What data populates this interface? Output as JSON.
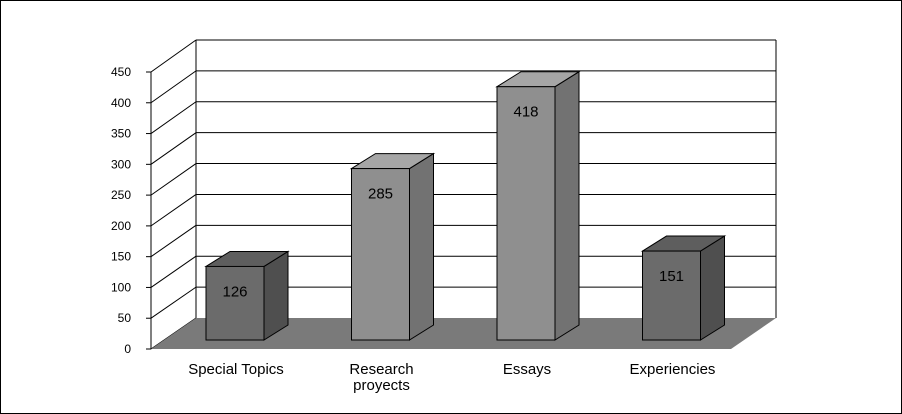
{
  "chart_data": {
    "type": "bar",
    "style": "3d-column",
    "categories": [
      "Special Topics",
      "Research proyects",
      "Essays",
      "Experiencies"
    ],
    "category_label_lines": [
      [
        "Special Topics"
      ],
      [
        "Research",
        "proyects"
      ],
      [
        "Essays"
      ],
      [
        "Experiencies"
      ]
    ],
    "values": [
      126,
      285,
      418,
      151
    ],
    "data_labels": [
      "126",
      "285",
      "418",
      "151"
    ],
    "title": "",
    "xlabel": "",
    "ylabel": "",
    "ylim": [
      0,
      450
    ],
    "yticks": [
      0,
      50,
      100,
      150,
      200,
      250,
      300,
      350,
      400,
      450
    ],
    "grid": true,
    "legend": "none"
  },
  "colors": {
    "floor": "#7a7a7a",
    "grid": "#000000",
    "bar_front_light": "#8f8f8f",
    "bar_front_dark": "#6b6b6b",
    "bar_side_light": "#727272",
    "bar_side_dark": "#4f4f4f",
    "bar_top_light": "#a6a6a6",
    "bar_top_dark": "#5e5e5e"
  }
}
